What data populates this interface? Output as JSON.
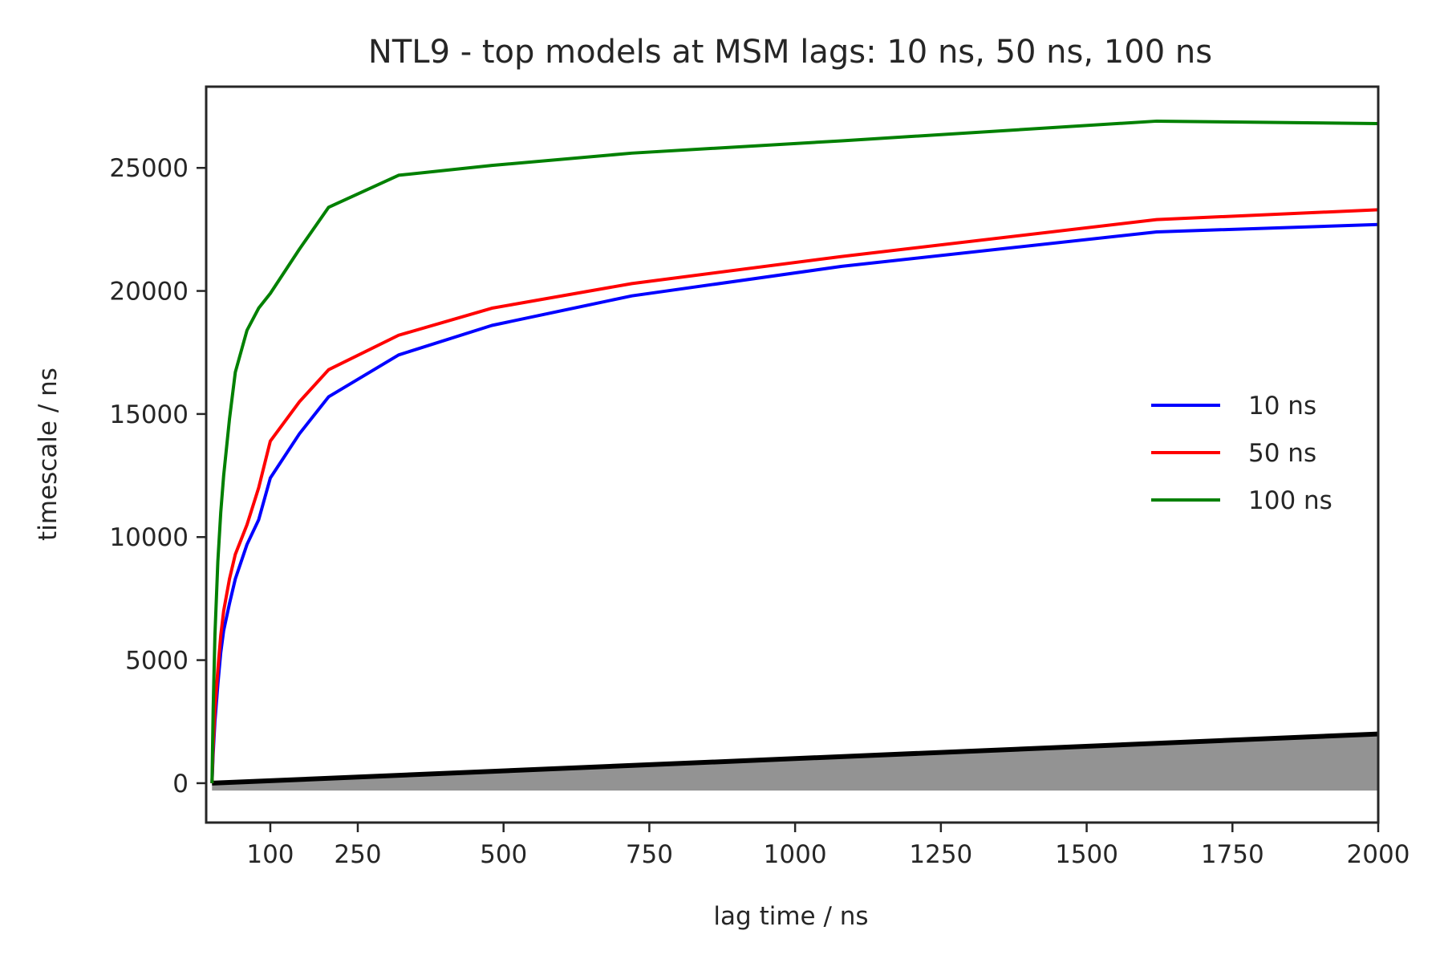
{
  "chart_data": {
    "type": "line",
    "title": "NTL9 - top models at MSM lags: 10 ns, 50 ns, 100 ns",
    "xlabel": "lag time / ns",
    "ylabel": "timescale / ns",
    "xlim": [
      -10,
      2000
    ],
    "ylim": [
      -1600,
      28300
    ],
    "xticks": [
      100,
      250,
      500,
      750,
      1000,
      1250,
      1500,
      1750,
      2000
    ],
    "xtick_labels": [
      "100",
      "250",
      "500",
      "750",
      "1000",
      "1250",
      "1500",
      "1750",
      "2000"
    ],
    "yticks": [
      0,
      5000,
      10000,
      15000,
      20000,
      25000
    ],
    "ytick_labels": [
      "0",
      "5000",
      "10000",
      "15000",
      "20000",
      "25000"
    ],
    "grid": false,
    "legend_position": "center-right",
    "series": [
      {
        "name": "10 ns",
        "color": "#0000ff",
        "x": [
          0,
          2,
          5,
          10,
          15,
          20,
          30,
          40,
          60,
          80,
          100,
          150,
          200,
          320,
          480,
          720,
          1080,
          1620,
          2000
        ],
        "y": [
          0,
          1200,
          2500,
          4000,
          5300,
          6200,
          7300,
          8300,
          9700,
          10700,
          12400,
          14200,
          15700,
          17400,
          18600,
          19800,
          21000,
          22400,
          22700
        ]
      },
      {
        "name": "50 ns",
        "color": "#ff0000",
        "x": [
          0,
          2,
          5,
          10,
          15,
          20,
          30,
          40,
          60,
          80,
          100,
          150,
          200,
          320,
          480,
          720,
          1080,
          1620,
          2000
        ],
        "y": [
          0,
          1500,
          3000,
          4600,
          6000,
          7000,
          8300,
          9300,
          10500,
          12000,
          13900,
          15500,
          16800,
          18200,
          19300,
          20300,
          21400,
          22900,
          23300
        ]
      },
      {
        "name": "100 ns",
        "color": "#008000",
        "x": [
          0,
          2,
          5,
          10,
          15,
          20,
          30,
          40,
          60,
          80,
          100,
          150,
          200,
          320,
          480,
          720,
          1080,
          1620,
          2000
        ],
        "y": [
          0,
          3000,
          6000,
          9000,
          11000,
          12500,
          14800,
          16700,
          18400,
          19300,
          19900,
          21700,
          23400,
          24700,
          25100,
          25600,
          26100,
          26900,
          26800
        ]
      }
    ],
    "reference_line": {
      "color": "#000000",
      "x": [
        0,
        2000
      ],
      "y": [
        0,
        2000
      ]
    },
    "shaded_region": {
      "color": "#808080",
      "x": [
        0,
        2000
      ],
      "y_lower": [
        -300,
        -300
      ],
      "y_upper": [
        0,
        2000
      ]
    }
  }
}
